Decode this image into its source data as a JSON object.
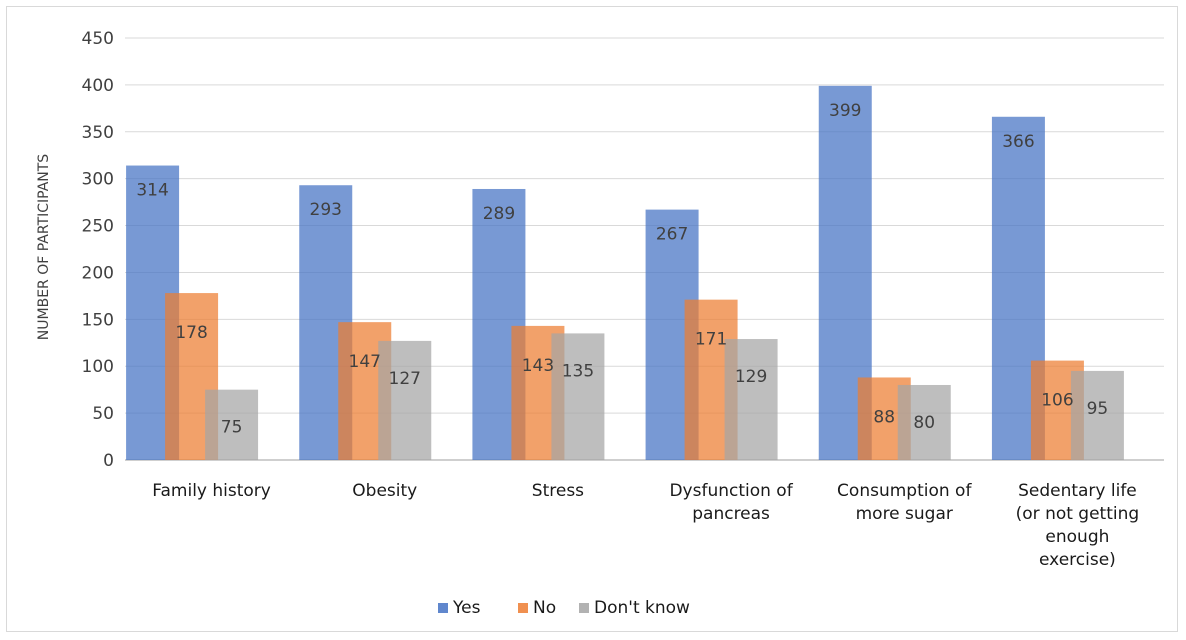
{
  "chart_data": {
    "type": "bar",
    "title": "",
    "xlabel": "",
    "ylabel": "NUMBER OF PARTICIPANTS",
    "ylim": [
      0,
      450
    ],
    "yticks": [
      0,
      50,
      100,
      150,
      200,
      250,
      300,
      350,
      400,
      450
    ],
    "grid": true,
    "legend_position": "bottom",
    "categories": [
      [
        "Family history"
      ],
      [
        "Obesity"
      ],
      [
        "Stress"
      ],
      [
        "Dysfunction of",
        "pancreas"
      ],
      [
        "Consumption of",
        "more sugar"
      ],
      [
        "Sedentary life",
        "(or not getting",
        "enough",
        "exercise)"
      ]
    ],
    "series": [
      {
        "name": "Yes",
        "color": "#4472c4",
        "values": [
          314,
          293,
          289,
          267,
          399,
          366
        ]
      },
      {
        "name": "No",
        "color": "#ed7d31",
        "values": [
          178,
          147,
          143,
          171,
          88,
          106
        ]
      },
      {
        "name": "Don't know",
        "color": "#a5a5a5",
        "values": [
          75,
          127,
          135,
          129,
          80,
          95
        ]
      }
    ]
  }
}
